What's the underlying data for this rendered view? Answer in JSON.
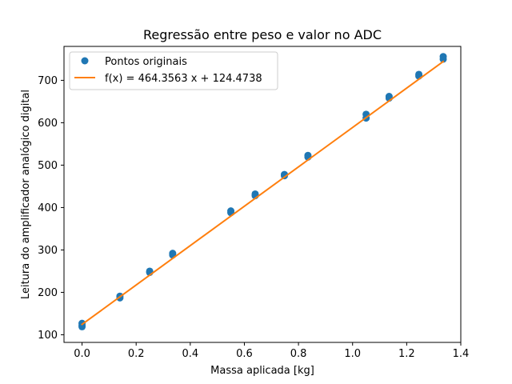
{
  "chart_data": {
    "type": "scatter",
    "title": "Regressão entre peso e valor no ADC",
    "xlabel": "Massa aplicada [kg]",
    "ylabel": "Leitura do amplificador analógico digital",
    "xlim": [
      -0.0667,
      1.4
    ],
    "ylim": [
      82,
      780
    ],
    "xticks": [
      0.0,
      0.2,
      0.4,
      0.6,
      0.8,
      1.0,
      1.2,
      1.4
    ],
    "xtick_labels": [
      "0.0",
      "0.2",
      "0.4",
      "0.6",
      "0.8",
      "1.0",
      "1.2",
      "1.4"
    ],
    "yticks": [
      100,
      200,
      300,
      400,
      500,
      600,
      700
    ],
    "ytick_labels": [
      "100",
      "200",
      "300",
      "400",
      "500",
      "600",
      "700"
    ],
    "grid": false,
    "legend_position": "top-left",
    "series": [
      {
        "name": "Pontos originais",
        "kind": "scatter",
        "color": "#1f77b4",
        "x": [
          0.0,
          0.0,
          0.0,
          0.14,
          0.14,
          0.25,
          0.25,
          0.335,
          0.335,
          0.55,
          0.55,
          0.64,
          0.64,
          0.748,
          0.748,
          0.835,
          0.835,
          1.05,
          1.05,
          1.135,
          1.135,
          1.245,
          1.245,
          1.335,
          1.335
        ],
        "y": [
          127,
          122,
          119,
          191,
          187,
          250,
          247,
          292,
          288,
          392,
          388,
          432,
          428,
          478,
          475,
          523,
          519,
          620,
          611,
          662,
          658,
          714,
          710,
          756,
          750
        ]
      },
      {
        "name": "f(x) = 464.3563 x + 124.4738",
        "kind": "line",
        "color": "#ff7f0e",
        "slope": 464.3563,
        "intercept": 124.4738,
        "x": [
          0.0,
          1.335
        ]
      }
    ]
  }
}
